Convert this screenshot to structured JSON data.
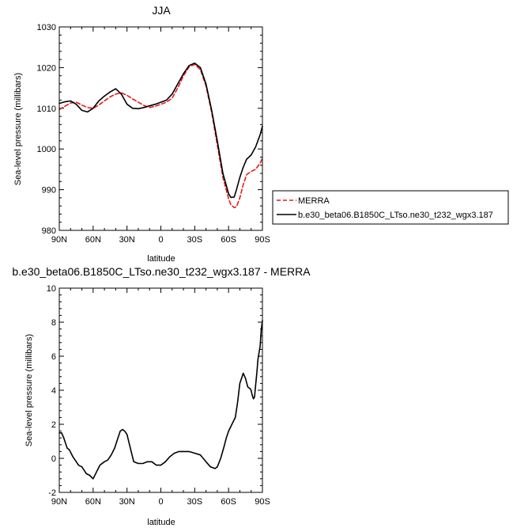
{
  "chart_data": [
    {
      "type": "line",
      "title": "JJA",
      "xlabel": "latitude",
      "ylabel": "Sea-level pressure (millibars)",
      "xlim": [
        -90,
        90
      ],
      "ylim": [
        980,
        1030
      ],
      "xticks": [
        -90,
        -60,
        -30,
        0,
        30,
        60,
        90
      ],
      "xtick_labels": [
        "90N",
        "60N",
        "30N",
        "0",
        "30S",
        "60S",
        "90S"
      ],
      "yticks": [
        980,
        990,
        1000,
        1010,
        1020,
        1030
      ],
      "ytick_labels": [
        "980",
        "990",
        "1000",
        "1010",
        "1020",
        "1030"
      ],
      "legend_position": "right, outside plot",
      "series": [
        {
          "name": "MERRA",
          "color": "#e41a1c",
          "dash": "dashed",
          "x": [
            -90,
            -85,
            -80,
            -75,
            -70,
            -65,
            -60,
            -55,
            -50,
            -45,
            -40,
            -35,
            -30,
            -25,
            -20,
            -15,
            -10,
            -5,
            0,
            5,
            10,
            15,
            20,
            25,
            30,
            35,
            40,
            45,
            50,
            55,
            60,
            62,
            65,
            67,
            70,
            73,
            76,
            80,
            84,
            88,
            90
          ],
          "y": [
            1009.7,
            1010.5,
            1011.3,
            1011.5,
            1010.8,
            1010.2,
            1010.0,
            1010.8,
            1011.8,
            1012.8,
            1013.5,
            1013.8,
            1013.2,
            1012.3,
            1011.5,
            1010.7,
            1010.2,
            1010.5,
            1011.0,
            1011.5,
            1012.5,
            1015.0,
            1018.0,
            1020.2,
            1020.8,
            1019.5,
            1015.5,
            1009.0,
            1001.0,
            993.0,
            987.8,
            986.3,
            985.6,
            985.8,
            988.0,
            991.2,
            993.7,
            994.5,
            995.0,
            996.5,
            997.8
          ]
        },
        {
          "name": "b.e30_beta06.B1850C_LTso.ne30_t232_wgx3.187",
          "color": "#000000",
          "dash": "solid",
          "x": [
            -90,
            -85,
            -80,
            -75,
            -70,
            -65,
            -60,
            -55,
            -50,
            -45,
            -40,
            -35,
            -30,
            -25,
            -20,
            -15,
            -10,
            -5,
            0,
            5,
            10,
            15,
            20,
            25,
            30,
            35,
            40,
            45,
            50,
            55,
            60,
            62,
            65,
            67,
            70,
            73,
            76,
            80,
            84,
            88,
            90
          ],
          "y": [
            1011.2,
            1011.6,
            1011.8,
            1011.0,
            1009.5,
            1009.1,
            1010.0,
            1011.8,
            1013.0,
            1014.0,
            1014.8,
            1013.5,
            1011.0,
            1010.0,
            1009.9,
            1010.2,
            1010.6,
            1011.0,
            1011.5,
            1012.0,
            1013.5,
            1016.0,
            1018.5,
            1020.5,
            1021.1,
            1020.0,
            1016.0,
            1009.5,
            1002.0,
            994.0,
            989.0,
            988.1,
            988.2,
            990.0,
            993.0,
            995.5,
            997.5,
            998.5,
            1000.5,
            1003.5,
            1005.6
          ]
        }
      ]
    },
    {
      "type": "line",
      "title": "b.e30_beta06.B1850C_LTso.ne30_t232_wgx3.187 - MERRA",
      "xlabel": "latitude",
      "ylabel": "Sea-level pressure (millibars)",
      "xlim": [
        -90,
        90
      ],
      "ylim": [
        -2,
        10
      ],
      "xticks": [
        -90,
        -60,
        -30,
        0,
        30,
        60,
        90
      ],
      "xtick_labels": [
        "90N",
        "60N",
        "30N",
        "0",
        "30S",
        "60S",
        "90S"
      ],
      "yticks": [
        -2,
        0,
        2,
        4,
        6,
        8,
        10
      ],
      "ytick_labels": [
        "-2",
        "0",
        "2",
        "4",
        "6",
        "8",
        "10"
      ],
      "series": [
        {
          "color": "#000000",
          "dash": "solid",
          "x": [
            -90,
            -88,
            -86,
            -83,
            -81,
            -78,
            -76,
            -73,
            -70,
            -66,
            -63,
            -60,
            -57,
            -54,
            -50,
            -47,
            -44,
            -41,
            -38,
            -36,
            -34,
            -32,
            -30,
            -27,
            -24,
            -20,
            -16,
            -12,
            -8,
            -4,
            0,
            4,
            8,
            12,
            16,
            20,
            25,
            30,
            35,
            40,
            44,
            48,
            50,
            53,
            56,
            58,
            60,
            63,
            66,
            68,
            70,
            72,
            73,
            75,
            77,
            79,
            80,
            81,
            82,
            83,
            84,
            85,
            86,
            87,
            88,
            89,
            90
          ],
          "y": [
            1.5,
            1.5,
            1.2,
            0.6,
            0.5,
            0.1,
            -0.1,
            -0.4,
            -0.5,
            -0.9,
            -1.0,
            -1.2,
            -0.8,
            -0.4,
            -0.2,
            -0.1,
            0.2,
            0.6,
            1.2,
            1.6,
            1.7,
            1.6,
            1.4,
            0.6,
            -0.2,
            -0.3,
            -0.3,
            -0.2,
            -0.2,
            -0.4,
            -0.4,
            -0.2,
            0.1,
            0.3,
            0.4,
            0.4,
            0.4,
            0.3,
            0.2,
            -0.2,
            -0.5,
            -0.6,
            -0.5,
            0.0,
            0.7,
            1.2,
            1.6,
            2.0,
            2.4,
            3.3,
            4.4,
            4.8,
            5.0,
            4.7,
            4.2,
            4.1,
            4.0,
            3.7,
            3.5,
            3.6,
            4.3,
            5.0,
            5.8,
            6.2,
            6.6,
            7.6,
            8.1
          ]
        }
      ]
    }
  ]
}
